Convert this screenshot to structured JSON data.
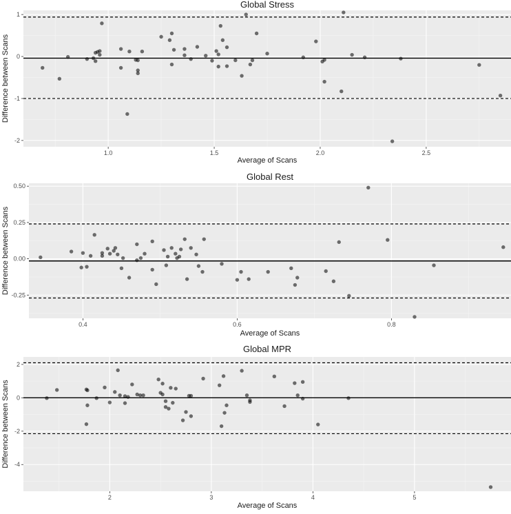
{
  "chart_data": [
    {
      "type": "scatter",
      "title": "Global Stress",
      "xlabel": "Average of Scans",
      "ylabel": "Difference between Scans",
      "xlim": [
        0.6,
        2.9
      ],
      "ylim": [
        -2.15,
        1.1
      ],
      "x_ticks": [
        1.0,
        1.5,
        2.0,
        2.5
      ],
      "x_tick_labels": [
        "1.0",
        "1.5",
        "2.0",
        "2.5"
      ],
      "y_ticks": [
        -2,
        -1,
        0,
        1
      ],
      "y_tick_labels": [
        "-2",
        "-1",
        "0",
        "1"
      ],
      "mean": -0.04,
      "upper_loa": 0.94,
      "lower_loa": -1.0,
      "points": [
        [
          0.69,
          -0.27
        ],
        [
          0.77,
          -0.53
        ],
        [
          0.81,
          -0.01
        ],
        [
          0.9,
          -0.06
        ],
        [
          0.93,
          -0.04
        ],
        [
          0.94,
          0.09
        ],
        [
          0.94,
          -0.11
        ],
        [
          0.95,
          0.11
        ],
        [
          0.96,
          0.04
        ],
        [
          0.96,
          0.13
        ],
        [
          0.97,
          0.79
        ],
        [
          1.06,
          -0.27
        ],
        [
          1.06,
          0.18
        ],
        [
          1.09,
          -1.37
        ],
        [
          1.1,
          0.12
        ],
        [
          1.13,
          -0.08
        ],
        [
          1.14,
          -0.33
        ],
        [
          1.14,
          -0.4
        ],
        [
          1.14,
          -0.09
        ],
        [
          1.16,
          0.12
        ],
        [
          1.25,
          0.47
        ],
        [
          1.29,
          0.39
        ],
        [
          1.3,
          -0.19
        ],
        [
          1.3,
          0.55
        ],
        [
          1.31,
          0.16
        ],
        [
          1.36,
          0.18
        ],
        [
          1.36,
          0.03
        ],
        [
          1.39,
          -0.06
        ],
        [
          1.42,
          0.23
        ],
        [
          1.46,
          0.02
        ],
        [
          1.49,
          -0.1
        ],
        [
          1.51,
          0.13
        ],
        [
          1.52,
          0.05
        ],
        [
          1.52,
          -0.24
        ],
        [
          1.53,
          0.73
        ],
        [
          1.54,
          0.39
        ],
        [
          1.56,
          -0.23
        ],
        [
          1.56,
          0.22
        ],
        [
          1.6,
          -0.09
        ],
        [
          1.63,
          -0.46
        ],
        [
          1.65,
          1.0
        ],
        [
          1.67,
          -0.19
        ],
        [
          1.68,
          -0.09
        ],
        [
          1.7,
          0.55
        ],
        [
          1.75,
          0.07
        ],
        [
          1.92,
          -0.02
        ],
        [
          1.98,
          0.36
        ],
        [
          2.01,
          -0.12
        ],
        [
          2.02,
          -0.08
        ],
        [
          2.02,
          -0.6
        ],
        [
          2.1,
          -0.83
        ],
        [
          2.11,
          1.05
        ],
        [
          2.15,
          0.04
        ],
        [
          2.21,
          -0.02
        ],
        [
          2.34,
          -2.02
        ],
        [
          2.38,
          -0.05
        ],
        [
          2.75,
          -0.2
        ],
        [
          2.85,
          -0.93
        ]
      ]
    },
    {
      "type": "scatter",
      "title": "Global Rest",
      "xlabel": "Average of Scans",
      "ylabel": "Difference between Scans",
      "xlim": [
        0.33,
        0.955
      ],
      "ylim": [
        -0.41,
        0.52
      ],
      "x_ticks": [
        0.4,
        0.6,
        0.8
      ],
      "x_tick_labels": [
        "0.4",
        "0.6",
        "0.8"
      ],
      "y_ticks": [
        -0.25,
        0.0,
        0.25,
        0.5
      ],
      "y_tick_labels": [
        "-0.25",
        "0.00",
        "0.25",
        "0.50"
      ],
      "mean": -0.015,
      "upper_loa": 0.24,
      "lower_loa": -0.27,
      "points": [
        [
          0.345,
          0.01
        ],
        [
          0.385,
          0.05
        ],
        [
          0.398,
          -0.06
        ],
        [
          0.4,
          0.04
        ],
        [
          0.405,
          -0.055
        ],
        [
          0.41,
          0.02
        ],
        [
          0.415,
          0.165
        ],
        [
          0.425,
          0.04
        ],
        [
          0.425,
          0.02
        ],
        [
          0.432,
          0.07
        ],
        [
          0.435,
          0.035
        ],
        [
          0.44,
          0.055
        ],
        [
          0.442,
          0.075
        ],
        [
          0.445,
          0.03
        ],
        [
          0.45,
          -0.065
        ],
        [
          0.452,
          0.005
        ],
        [
          0.46,
          -0.13
        ],
        [
          0.47,
          -0.01
        ],
        [
          0.47,
          0.1
        ],
        [
          0.475,
          0.005
        ],
        [
          0.48,
          0.035
        ],
        [
          0.49,
          -0.075
        ],
        [
          0.49,
          0.12
        ],
        [
          0.495,
          -0.175
        ],
        [
          0.505,
          0.06
        ],
        [
          0.508,
          -0.045
        ],
        [
          0.51,
          0.015
        ],
        [
          0.515,
          0.075
        ],
        [
          0.52,
          0.035
        ],
        [
          0.522,
          0.005
        ],
        [
          0.525,
          0.015
        ],
        [
          0.527,
          0.065
        ],
        [
          0.532,
          0.135
        ],
        [
          0.535,
          -0.14
        ],
        [
          0.54,
          0.075
        ],
        [
          0.547,
          0.03
        ],
        [
          0.55,
          -0.05
        ],
        [
          0.555,
          -0.09
        ],
        [
          0.557,
          0.135
        ],
        [
          0.58,
          -0.035
        ],
        [
          0.6,
          -0.145
        ],
        [
          0.605,
          -0.09
        ],
        [
          0.615,
          -0.14
        ],
        [
          0.64,
          -0.09
        ],
        [
          0.67,
          -0.065
        ],
        [
          0.675,
          -0.18
        ],
        [
          0.678,
          -0.13
        ],
        [
          0.715,
          -0.085
        ],
        [
          0.725,
          -0.155
        ],
        [
          0.732,
          0.115
        ],
        [
          0.745,
          -0.255
        ],
        [
          0.77,
          0.49
        ],
        [
          0.795,
          0.13
        ],
        [
          0.83,
          -0.4
        ],
        [
          0.855,
          -0.045
        ],
        [
          0.945,
          0.08
        ]
      ]
    },
    {
      "type": "scatter",
      "title": "Global MPR",
      "xlabel": "Average of Scans",
      "ylabel": "Difference between Scans",
      "xlim": [
        1.15,
        5.95
      ],
      "ylim": [
        -5.6,
        2.45
      ],
      "x_ticks": [
        2,
        3,
        4,
        5
      ],
      "x_tick_labels": [
        "2",
        "3",
        "4",
        "5"
      ],
      "y_ticks": [
        -4,
        -2,
        0,
        2
      ],
      "y_tick_labels": [
        "-4",
        "-2",
        "0",
        "2"
      ],
      "mean": 0.0,
      "upper_loa": 2.1,
      "lower_loa": -2.15,
      "points": [
        [
          1.38,
          -0.02
        ],
        [
          1.48,
          0.47
        ],
        [
          1.77,
          -1.58
        ],
        [
          1.77,
          0.5
        ],
        [
          1.78,
          0.45
        ],
        [
          1.78,
          -0.45
        ],
        [
          1.87,
          -0.02
        ],
        [
          1.95,
          0.62
        ],
        [
          2.0,
          -0.28
        ],
        [
          2.05,
          0.35
        ],
        [
          2.08,
          1.65
        ],
        [
          2.1,
          0.15
        ],
        [
          2.15,
          0.1
        ],
        [
          2.15,
          -0.32
        ],
        [
          2.18,
          0.05
        ],
        [
          2.22,
          0.8
        ],
        [
          2.27,
          0.2
        ],
        [
          2.3,
          0.15
        ],
        [
          2.33,
          0.15
        ],
        [
          2.48,
          1.1
        ],
        [
          2.5,
          0.3
        ],
        [
          2.52,
          0.2
        ],
        [
          2.52,
          0.85
        ],
        [
          2.55,
          -0.55
        ],
        [
          2.55,
          -0.2
        ],
        [
          2.58,
          -0.65
        ],
        [
          2.6,
          0.6
        ],
        [
          2.62,
          -0.3
        ],
        [
          2.65,
          0.55
        ],
        [
          2.72,
          -1.35
        ],
        [
          2.75,
          -0.85
        ],
        [
          2.78,
          0.12
        ],
        [
          2.8,
          0.12
        ],
        [
          2.8,
          -1.1
        ],
        [
          2.92,
          1.15
        ],
        [
          3.08,
          0.75
        ],
        [
          3.1,
          -1.7
        ],
        [
          3.12,
          1.3
        ],
        [
          3.13,
          -0.9
        ],
        [
          3.15,
          -0.45
        ],
        [
          3.3,
          1.62
        ],
        [
          3.35,
          0.15
        ],
        [
          3.38,
          -0.25
        ],
        [
          3.38,
          -0.15
        ],
        [
          3.62,
          1.28
        ],
        [
          3.72,
          -0.5
        ],
        [
          3.82,
          0.88
        ],
        [
          3.85,
          0.15
        ],
        [
          3.9,
          -0.05
        ],
        [
          3.9,
          0.95
        ],
        [
          4.05,
          -1.6
        ],
        [
          4.35,
          -0.02
        ],
        [
          5.75,
          -5.35
        ]
      ]
    }
  ]
}
